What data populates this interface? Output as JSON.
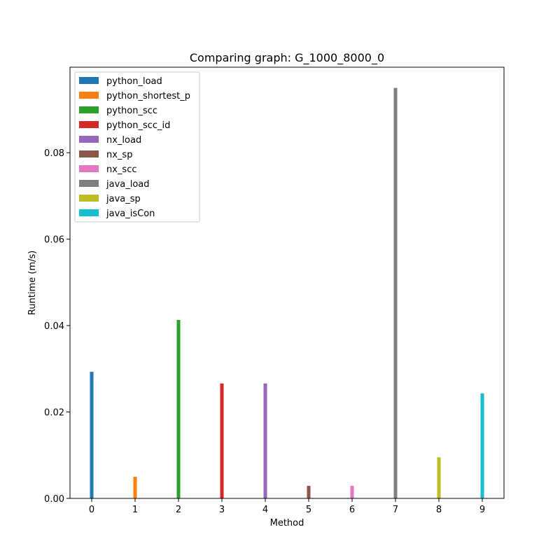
{
  "chart_data": {
    "type": "bar",
    "title": "Comparing graph: G_1000_8000_0",
    "xlabel": "Method",
    "ylabel": "Runtime (m/s)",
    "x": [
      0,
      1,
      2,
      3,
      4,
      5,
      6,
      7,
      8,
      9
    ],
    "xticks": [
      "0",
      "1",
      "2",
      "3",
      "4",
      "5",
      "6",
      "7",
      "8",
      "9"
    ],
    "ylim": [
      0,
      0.0998
    ],
    "yticks": [
      0.0,
      0.02,
      0.04,
      0.06,
      0.08
    ],
    "ytick_labels": [
      "0.00",
      "0.02",
      "0.04",
      "0.06",
      "0.08"
    ],
    "grid": false,
    "legend_position": "top-left",
    "series": [
      {
        "name": "python_load",
        "x": 0,
        "value": 0.0293,
        "color": "#1f77b4"
      },
      {
        "name": "python_shortest_p",
        "x": 1,
        "value": 0.005,
        "color": "#ff7f0e"
      },
      {
        "name": "python_scc",
        "x": 2,
        "value": 0.0413,
        "color": "#2ca02c"
      },
      {
        "name": "python_scc_id",
        "x": 3,
        "value": 0.0266,
        "color": "#d62728"
      },
      {
        "name": "nx_load",
        "x": 4,
        "value": 0.0266,
        "color": "#9467bd"
      },
      {
        "name": "nx_sp",
        "x": 5,
        "value": 0.0029,
        "color": "#8c564b"
      },
      {
        "name": "nx_scc",
        "x": 6,
        "value": 0.0029,
        "color": "#e377c2"
      },
      {
        "name": "java_load",
        "x": 7,
        "value": 0.095,
        "color": "#7f7f7f"
      },
      {
        "name": "java_sp",
        "x": 8,
        "value": 0.0095,
        "color": "#bcbd22"
      },
      {
        "name": "java_isCon",
        "x": 9,
        "value": 0.0243,
        "color": "#17becf"
      }
    ]
  }
}
